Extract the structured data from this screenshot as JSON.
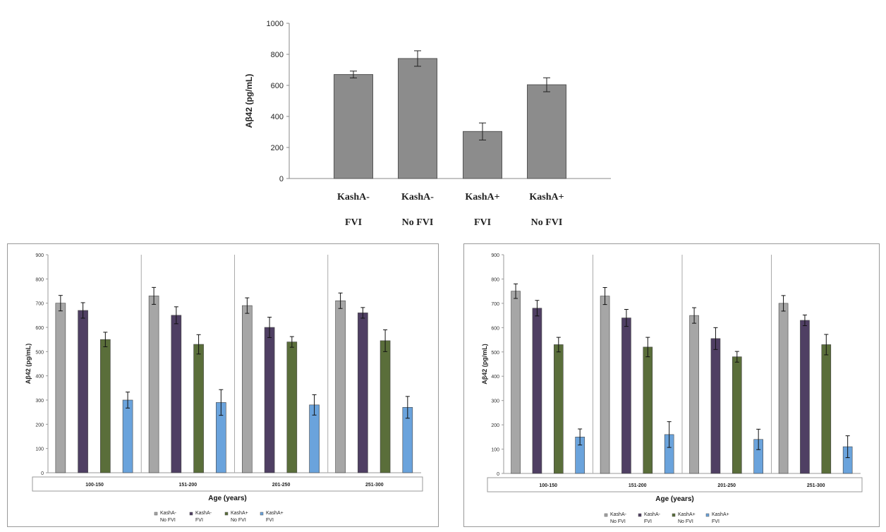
{
  "chart_data": [
    {
      "type": "bar",
      "ylabel": "Aβ42 (pg/mL)",
      "ylim": [
        0,
        1000
      ],
      "yticks": [
        0,
        200,
        400,
        600,
        800,
        1000
      ],
      "categories": [
        {
          "line1": "KashA-",
          "line2": "FVI"
        },
        {
          "line1": "KashA-",
          "line2": "No FVI"
        },
        {
          "line1": "KashA+",
          "line2": "FVI"
        },
        {
          "line1": "KashA+",
          "line2": "No FVI"
        }
      ],
      "values": [
        670,
        773,
        303,
        604
      ],
      "errors": [
        22,
        50,
        55,
        45
      ],
      "color": "#8c8c8c",
      "grid": false
    },
    {
      "type": "bar",
      "ylabel": "Aβ42 (pg/mL)",
      "xlabel": "Age (years)",
      "ylim": [
        0,
        900
      ],
      "yticks": [
        0,
        100,
        200,
        300,
        400,
        500,
        600,
        700,
        800,
        900
      ],
      "categories": [
        "100-150",
        "151-200",
        "201-250",
        "251-300"
      ],
      "series": [
        {
          "name": "KashA- No FVI",
          "color": "#a6a6a6",
          "values": [
            700,
            730,
            690,
            710
          ],
          "errors": [
            32,
            35,
            32,
            32
          ]
        },
        {
          "name": "KashA- FVI",
          "color": "#4f3f63",
          "values": [
            670,
            650,
            600,
            660
          ],
          "errors": [
            32,
            35,
            42,
            22
          ]
        },
        {
          "name": "KashA+ No FVI",
          "color": "#5a6e3a",
          "values": [
            550,
            530,
            540,
            545
          ],
          "errors": [
            30,
            40,
            22,
            45
          ]
        },
        {
          "name": "KashA+ FVI",
          "color": "#6aa3dc",
          "values": [
            300,
            290,
            280,
            270
          ],
          "errors": [
            33,
            53,
            42,
            45
          ]
        }
      ],
      "legend": [
        {
          "line1": "KashA-",
          "line2": "No FVI"
        },
        {
          "line1": "KashA-",
          "line2": "FVI"
        },
        {
          "line1": "KashA+",
          "line2": "No FVI"
        },
        {
          "line1": "KashA+",
          "line2": "FVI"
        }
      ],
      "legend_position": "bottom"
    },
    {
      "type": "bar",
      "ylabel": "Aβ42 (pg/mL)",
      "xlabel": "Age (years)",
      "ylim": [
        0,
        900
      ],
      "yticks": [
        0,
        100,
        200,
        300,
        400,
        500,
        600,
        700,
        800,
        900
      ],
      "categories": [
        "100-150",
        "151-200",
        "201-250",
        "251-300"
      ],
      "series": [
        {
          "name": "KashA- No FVI",
          "color": "#a6a6a6",
          "values": [
            750,
            730,
            650,
            700
          ],
          "errors": [
            30,
            35,
            32,
            32
          ]
        },
        {
          "name": "KashA- FVI",
          "color": "#4f3f63",
          "values": [
            680,
            640,
            555,
            630
          ],
          "errors": [
            32,
            35,
            45,
            22
          ]
        },
        {
          "name": "KashA+ No FVI",
          "color": "#5a6e3a",
          "values": [
            530,
            520,
            480,
            530
          ],
          "errors": [
            30,
            40,
            22,
            42
          ]
        },
        {
          "name": "KashA+ FVI",
          "color": "#6aa3dc",
          "values": [
            150,
            160,
            140,
            110
          ],
          "errors": [
            33,
            53,
            42,
            45
          ]
        }
      ],
      "legend": [
        {
          "line1": "KashA-",
          "line2": "No FVI"
        },
        {
          "line1": "KashA-",
          "line2": "FVI"
        },
        {
          "line1": "KashA+",
          "line2": "No FVI"
        },
        {
          "line1": "KashA+",
          "line2": "FVI"
        }
      ],
      "legend_position": "bottom"
    }
  ]
}
